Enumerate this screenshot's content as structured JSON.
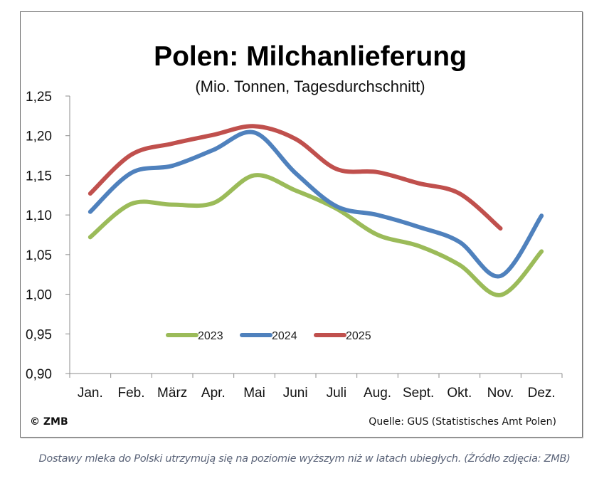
{
  "chart_data": {
    "type": "line",
    "title": "Polen: Milchanlieferung",
    "subtitle": "(Mio. Tonnen, Tagesdurchschnitt)",
    "xlabel": "",
    "ylabel": "",
    "categories": [
      "Jan.",
      "Feb.",
      "März",
      "Apr.",
      "Mai",
      "Juni",
      "Juli",
      "Aug.",
      "Sept.",
      "Okt.",
      "Nov.",
      "Dez."
    ],
    "ylim": [
      0.9,
      1.25
    ],
    "yticks": [
      0.9,
      0.95,
      1.0,
      1.05,
      1.1,
      1.15,
      1.2,
      1.25
    ],
    "ytick_labels": [
      "0,90",
      "0,95",
      "1,00",
      "1,05",
      "1,10",
      "1,15",
      "1,20",
      "1,25"
    ],
    "grid": false,
    "legend_position": "bottom-center-inside",
    "series": [
      {
        "name": "2023",
        "color": "#9bbb59",
        "values": [
          1.072,
          1.114,
          1.113,
          1.115,
          1.15,
          1.131,
          1.108,
          1.075,
          1.061,
          1.037,
          0.999,
          1.054
        ]
      },
      {
        "name": "2024",
        "color": "#4f81bd",
        "values": [
          1.104,
          1.153,
          1.162,
          1.182,
          1.204,
          1.153,
          1.111,
          1.1,
          1.085,
          1.066,
          1.023,
          1.099
        ]
      },
      {
        "name": "2025",
        "color": "#c0504d",
        "values": [
          1.127,
          1.176,
          1.19,
          1.201,
          1.212,
          1.196,
          1.158,
          1.154,
          1.14,
          1.127,
          1.083,
          null
        ]
      }
    ]
  },
  "footer": {
    "copyright": "© ZMB",
    "source": "Quelle:  GUS (Statistisches Amt Polen)"
  },
  "caption": "Dostawy mleka do Polski utrzymują się na poziomie wyższym niż w latach ubiegłych. (Źródło zdjęcia: ZMB)"
}
